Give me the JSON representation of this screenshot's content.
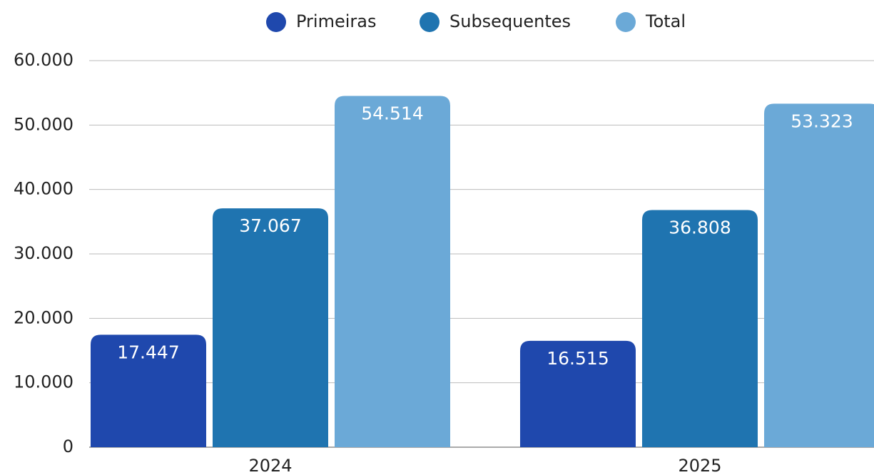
{
  "chart_data": {
    "type": "bar",
    "categories": [
      "2024",
      "2025"
    ],
    "series": [
      {
        "name": "Primeiras",
        "color": "#1f48ad",
        "values": [
          17447,
          16515
        ],
        "value_labels": [
          "17.447",
          "16.515"
        ]
      },
      {
        "name": "Subsequentes",
        "color": "#1f74b0",
        "values": [
          37067,
          36808
        ],
        "value_labels": [
          "37.067",
          "36.808"
        ]
      },
      {
        "name": "Total",
        "color": "#6ba9d7",
        "values": [
          54514,
          53323
        ],
        "value_labels": [
          "54.514",
          "53.323"
        ]
      }
    ],
    "ylim": [
      0,
      60000
    ],
    "yticks": [
      0,
      {
        "value": 10000,
        "label": "10.000"
      },
      {
        "value": 20000,
        "label": "20.000"
      },
      {
        "value": 30000,
        "label": "30.000"
      },
      {
        "value": 40000,
        "label": "40.000"
      },
      {
        "value": 50000,
        "label": "50.000"
      },
      {
        "value": 60000,
        "label": "60.000"
      }
    ],
    "grid": true,
    "legend": "top"
  }
}
